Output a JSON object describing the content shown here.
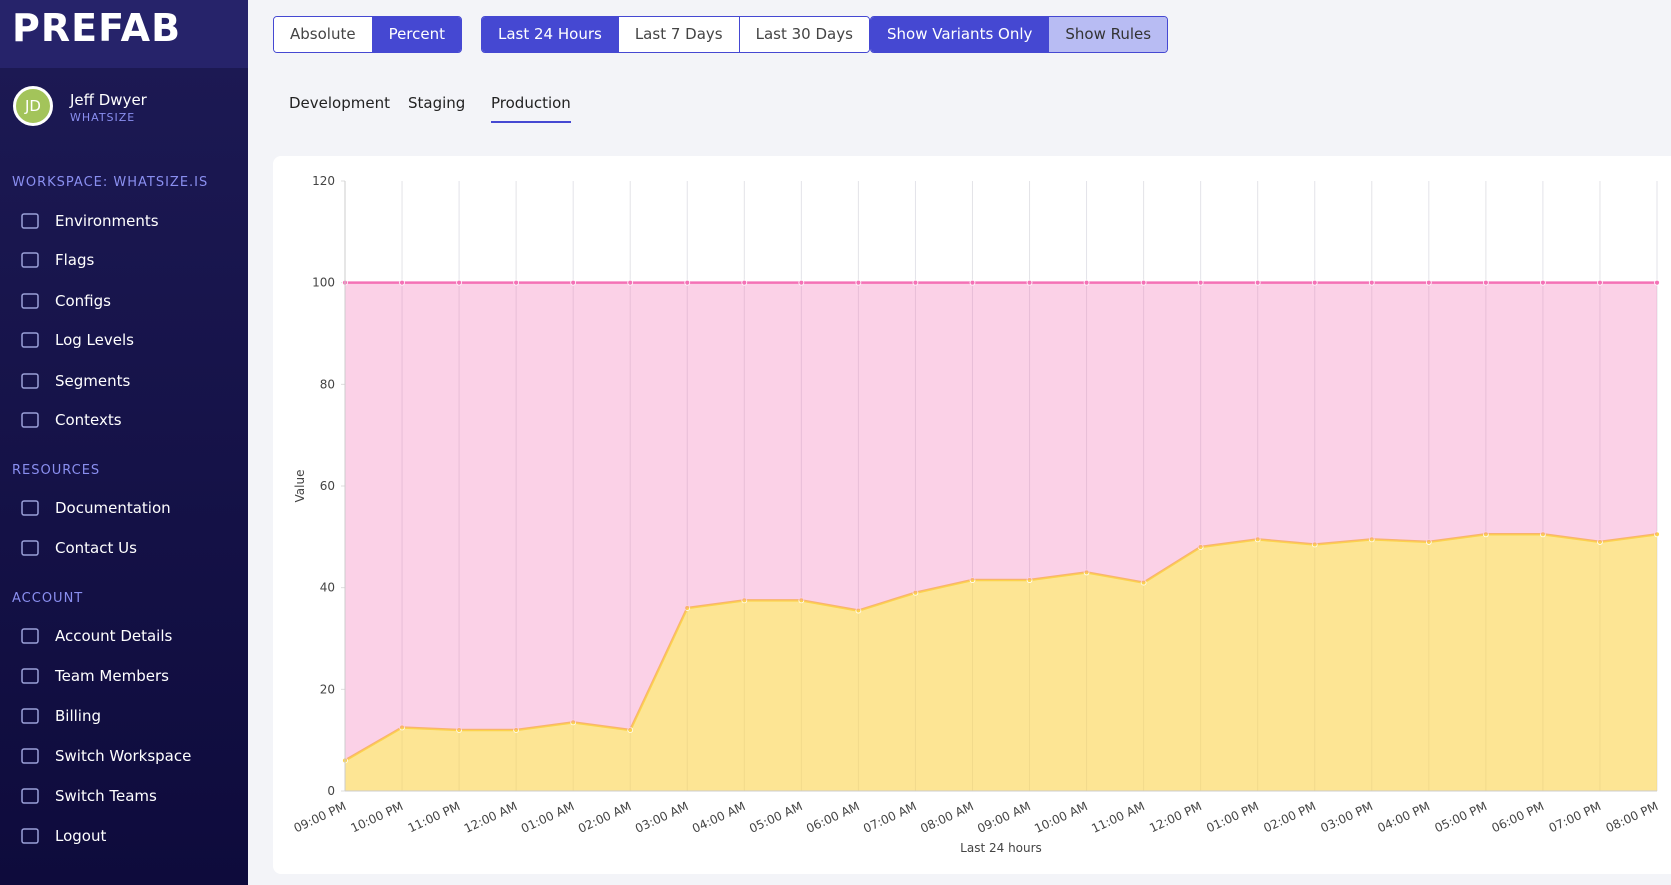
{
  "sidebar": {
    "logo": "PREFAB",
    "user": {
      "initials": "JD",
      "name": "Jeff Dwyer",
      "org": "WHATSIZE"
    },
    "sections": [
      {
        "title": "WORKSPACE: WHATSIZE.IS",
        "items": [
          "Environments",
          "Flags",
          "Configs",
          "Log Levels",
          "Segments",
          "Contexts"
        ]
      },
      {
        "title": "RESOURCES",
        "items": [
          "Documentation",
          "Contact Us"
        ]
      },
      {
        "title": "ACCOUNT",
        "items": [
          "Account Details",
          "Team Members",
          "Billing",
          "Switch Workspace",
          "Switch Teams",
          "Logout"
        ]
      }
    ]
  },
  "toolbar": {
    "groups": [
      {
        "buttons": [
          "Absolute",
          "Percent"
        ],
        "active": 1
      },
      {
        "buttons": [
          "Last 24 Hours",
          "Last 7 Days",
          "Last 30 Days"
        ],
        "active": 0
      },
      {
        "buttons": [
          "Show Variants Only",
          "Show Rules"
        ],
        "active": 0
      }
    ]
  },
  "tabs": {
    "items": [
      "Development",
      "Staging",
      "Production"
    ],
    "active": 2
  },
  "chart_data": {
    "type": "stacked-area",
    "y_label": "Value",
    "x_label": "Last 24 hours",
    "categories": [
      "09:00 PM",
      "10:00 PM",
      "11:00 PM",
      "12:00 AM",
      "01:00 AM",
      "02:00 AM",
      "03:00 AM",
      "04:00 AM",
      "05:00 AM",
      "06:00 AM",
      "07:00 AM",
      "08:00 AM",
      "09:00 AM",
      "10:00 AM",
      "11:00 AM",
      "12:00 PM",
      "01:00 PM",
      "02:00 PM",
      "03:00 PM",
      "04:00 PM",
      "05:00 PM",
      "06:00 PM",
      "07:00 PM",
      "08:00 PM"
    ],
    "series": [
      {
        "color": "#fcd34d",
        "values": [
          6,
          12.5,
          12,
          12,
          13.5,
          12,
          36,
          37.5,
          37.5,
          35.5,
          39,
          41.5,
          41.5,
          43,
          41,
          48,
          49.5,
          48.5,
          49.5,
          49,
          50.5,
          50.5,
          49,
          50.5
        ]
      },
      {
        "color": "#f472b6",
        "values": [
          94,
          87.5,
          88,
          88,
          86.5,
          88,
          64,
          62.5,
          62.5,
          64.5,
          61,
          58.5,
          58.5,
          57,
          59,
          52,
          50.5,
          51.5,
          50.5,
          51,
          49.5,
          49.5,
          51,
          49.5
        ]
      }
    ],
    "ylim": [
      0,
      120
    ],
    "yticks": [
      0,
      20,
      40,
      60,
      80,
      100,
      120
    ],
    "grid": true
  }
}
